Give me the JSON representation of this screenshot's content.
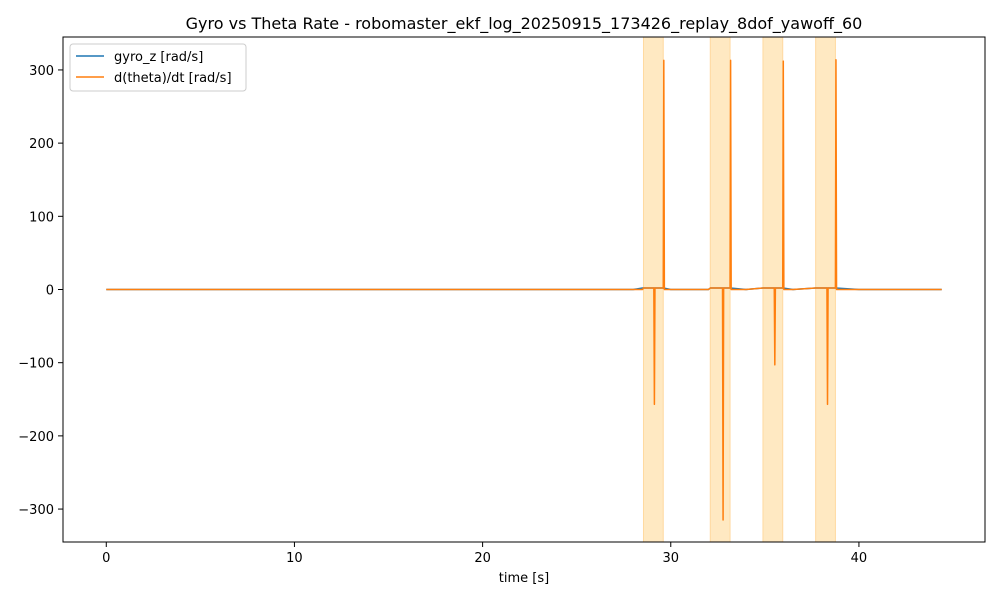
{
  "chart_data": {
    "type": "line",
    "title": "Gyro vs Theta Rate - robomaster_ekf_log_20250915_173426_replay_8dof_yawoff_60",
    "xlabel": "time [s]",
    "ylabel": "",
    "xlim": [
      -2.3,
      46.7
    ],
    "ylim": [
      -345,
      345
    ],
    "xticks": [
      0,
      10,
      20,
      30,
      40
    ],
    "yticks": [
      -300,
      -200,
      -100,
      0,
      100,
      200,
      300
    ],
    "xtick_labels": [
      "0",
      "10",
      "20",
      "30",
      "40"
    ],
    "ytick_labels": [
      "−300",
      "−200",
      "−100",
      "0",
      "100",
      "200",
      "300"
    ],
    "grid": false,
    "legend": {
      "placement": "top-left"
    },
    "highlight_color": "#ffe9c2",
    "highlight_edge_color": "#ffd9a0",
    "highlight_spans": [
      [
        28.55,
        29.6
      ],
      [
        32.1,
        33.15
      ],
      [
        34.9,
        35.95
      ],
      [
        37.7,
        38.75
      ]
    ],
    "series": [
      {
        "name": "gyro_z [rad/s]",
        "color": "#1f77b4",
        "x": [
          0,
          2,
          4,
          6,
          8,
          10,
          12,
          14,
          16,
          18,
          20,
          22,
          24,
          26,
          28,
          28.5,
          29.6,
          30,
          32,
          32.1,
          33.15,
          34,
          34.9,
          35.95,
          36.5,
          37.7,
          38.75,
          40,
          42,
          44.4
        ],
        "y": [
          0,
          0,
          0,
          0,
          0,
          0,
          0,
          0,
          0,
          0,
          0,
          0,
          0,
          0,
          0,
          2,
          2,
          0,
          0,
          2,
          2,
          0,
          2,
          2,
          0,
          2,
          2,
          0,
          0,
          0
        ]
      },
      {
        "name": "d(theta)/dt [rad/s]",
        "color": "#ff7f0e",
        "x": [
          0,
          5,
          10,
          15,
          20,
          25,
          28.5,
          28.55,
          29.1,
          29.13,
          29.13,
          29.16,
          29.6,
          29.63,
          29.63,
          29.66,
          30,
          32,
          32.1,
          32.75,
          32.78,
          32.78,
          32.81,
          33.15,
          33.18,
          33.18,
          33.21,
          34,
          34.9,
          35.5,
          35.53,
          35.53,
          35.56,
          35.95,
          35.98,
          35.98,
          36.01,
          36.5,
          37.7,
          38.3,
          38.33,
          38.33,
          38.36,
          38.75,
          38.78,
          38.78,
          38.81,
          40,
          44.4
        ],
        "y": [
          0,
          0,
          0,
          0,
          0,
          0,
          0,
          2,
          2,
          -157,
          -157,
          2,
          2,
          313,
          313,
          0,
          0,
          0,
          2,
          2,
          -315,
          -315,
          2,
          2,
          313,
          313,
          0,
          0,
          2,
          2,
          -103,
          -103,
          2,
          2,
          312,
          312,
          0,
          0,
          2,
          2,
          -157,
          -157,
          2,
          2,
          314,
          314,
          0,
          0,
          0
        ]
      }
    ]
  }
}
